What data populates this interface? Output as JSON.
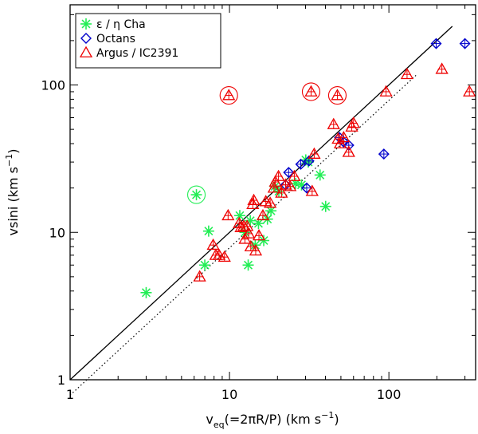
{
  "chart_data": {
    "type": "scatter",
    "xscale": "log",
    "yscale": "log",
    "xlim": [
      1,
      350
    ],
    "ylim": [
      1,
      350
    ],
    "x_ticks": [
      1,
      10,
      100
    ],
    "x_tick_labels": [
      "1",
      "10",
      "100"
    ],
    "y_ticks": [
      1,
      10,
      100
    ],
    "y_tick_labels": [
      "1",
      "10",
      "100"
    ],
    "xlabel": "v_eq(=2πR/P) (km s^-1)",
    "xlabel_main": "v",
    "xlabel_sub": "eq",
    "xlabel_rest": "(=2πR/P) (km s",
    "xlabel_sup": "−1",
    "xlabel_close": ")",
    "ylabel": "vsini (km s^-1)",
    "ylabel_main": "vsini (km s",
    "ylabel_sup": "−1",
    "ylabel_close": ")",
    "legend_position": "top-left",
    "legend": [
      {
        "label": "ε / η Cha",
        "color": "#22ee55",
        "marker": "asterisk"
      },
      {
        "label": "Octans",
        "color": "#0000cc",
        "marker": "diamond"
      },
      {
        "label": "Argus / IC2391",
        "color": "#ee0000",
        "marker": "triangle"
      }
    ],
    "lines": [
      {
        "name": "equality",
        "style": "solid",
        "x": [
          1,
          250
        ],
        "y": [
          1,
          250
        ]
      },
      {
        "name": "equality-times-pi-over-4",
        "style": "dotted",
        "x": [
          1,
          150
        ],
        "y": [
          0.785,
          118
        ]
      }
    ],
    "series": [
      {
        "name": "ε / η Cha",
        "marker": "asterisk",
        "color": "#22ee55",
        "x": [
          3.0,
          6.2,
          7.0,
          7.4,
          11.6,
          12.5,
          13.1,
          13.5,
          14.5,
          15.2,
          16.4,
          17.3,
          18.2,
          19.3,
          20.4,
          26.0,
          28.3,
          30.1,
          31.2,
          37.0,
          40.1
        ],
        "y": [
          3.9,
          18.0,
          6.0,
          10.2,
          13.0,
          10.0,
          6.0,
          12.0,
          8.2,
          11.5,
          8.8,
          12.3,
          14.0,
          20.5,
          19.0,
          21.5,
          21.0,
          31.0,
          30.0,
          24.5,
          15.0
        ],
        "circled": [
          false,
          true,
          false,
          false,
          false,
          false,
          false,
          false,
          false,
          false,
          false,
          false,
          false,
          false,
          false,
          false,
          false,
          false,
          false,
          false,
          false
        ]
      },
      {
        "name": "Octans",
        "marker": "diamond",
        "color": "#0000cc",
        "x": [
          22.5,
          23.5,
          28.0,
          30.5,
          31.5,
          49.0,
          52.0,
          56.0,
          93.0,
          198.0,
          300.0
        ],
        "y": [
          21.0,
          25.5,
          29.0,
          20.0,
          30.5,
          44.0,
          41.0,
          39.0,
          34.0,
          191.0,
          191.0
        ],
        "circled": [
          false,
          false,
          false,
          false,
          false,
          false,
          false,
          false,
          false,
          false,
          false
        ]
      },
      {
        "name": "Argus / IC2391",
        "marker": "triangle",
        "color": "#ee0000",
        "x": [
          6.5,
          7.9,
          8.2,
          8.6,
          9.3,
          9.8,
          9.9,
          11.5,
          11.8,
          12.3,
          12.5,
          12.9,
          13.2,
          13.6,
          14.0,
          14.2,
          14.6,
          15.3,
          16.2,
          16.9,
          18.0,
          19.0,
          19.4,
          20.3,
          21.2,
          22.5,
          24.0,
          25.5,
          32.5,
          33.0,
          34.0,
          45.0,
          47.5,
          48.0,
          49.5,
          52.0,
          56.0,
          58.5,
          60.0,
          96.0,
          130.0,
          215.0,
          320.0
        ],
        "y": [
          5.0,
          8.2,
          7.0,
          7.0,
          6.8,
          13.0,
          85.0,
          11.5,
          10.8,
          11.0,
          9.0,
          11.0,
          9.8,
          8.0,
          15.5,
          16.5,
          7.5,
          9.5,
          13.0,
          16.2,
          15.8,
          20.0,
          22.0,
          24.0,
          18.5,
          21.0,
          20.5,
          24.0,
          90.0,
          19.0,
          34.0,
          54.0,
          85.0,
          43.0,
          40.0,
          44.0,
          35.0,
          52.0,
          55.0,
          90.0,
          118.0,
          128.0,
          90.0
        ],
        "circled": [
          false,
          false,
          false,
          false,
          false,
          false,
          true,
          false,
          false,
          false,
          false,
          false,
          false,
          false,
          false,
          false,
          false,
          false,
          false,
          false,
          false,
          false,
          false,
          false,
          false,
          false,
          false,
          false,
          true,
          false,
          false,
          false,
          true,
          false,
          false,
          false,
          false,
          false,
          false,
          false,
          false,
          false,
          false
        ]
      }
    ]
  }
}
